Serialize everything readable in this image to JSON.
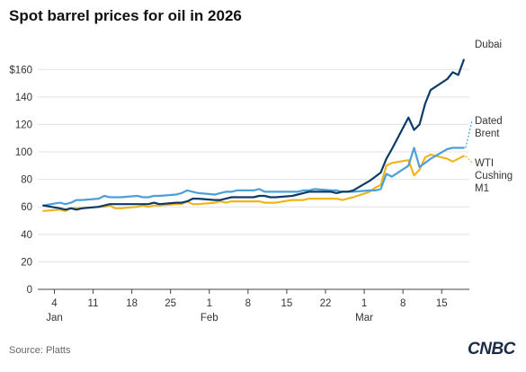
{
  "header": {
    "title": "Spot barrel prices for oil in 2026"
  },
  "footer": {
    "source": "Source: Platts",
    "logo_text": "CNBC"
  },
  "chart_data": {
    "type": "line",
    "title": "Spot barrel prices for oil in 2026",
    "xlabel": "",
    "ylabel": "",
    "ylim": [
      0,
      170
    ],
    "xlim": [
      "2026-01-01",
      "2026-03-20"
    ],
    "grid": true,
    "legend": "direct-labels-right",
    "y_ticks": [
      {
        "value": 0,
        "label": "0"
      },
      {
        "value": 20,
        "label": "20"
      },
      {
        "value": 40,
        "label": "40"
      },
      {
        "value": 60,
        "label": "60"
      },
      {
        "value": 80,
        "label": "80"
      },
      {
        "value": 100,
        "label": "100"
      },
      {
        "value": 120,
        "label": "120"
      },
      {
        "value": 140,
        "label": "140"
      },
      {
        "value": 160,
        "label": "$160"
      }
    ],
    "x_ticks": [
      {
        "date": "2026-01-04",
        "label": "4",
        "month": "Jan"
      },
      {
        "date": "2026-01-11",
        "label": "11",
        "month": ""
      },
      {
        "date": "2026-01-18",
        "label": "18",
        "month": ""
      },
      {
        "date": "2026-01-25",
        "label": "25",
        "month": ""
      },
      {
        "date": "2026-02-01",
        "label": "1",
        "month": "Feb"
      },
      {
        "date": "2026-02-08",
        "label": "8",
        "month": ""
      },
      {
        "date": "2026-02-15",
        "label": "15",
        "month": ""
      },
      {
        "date": "2026-02-22",
        "label": "22",
        "month": ""
      },
      {
        "date": "2026-03-01",
        "label": "1",
        "month": "Mar"
      },
      {
        "date": "2026-03-08",
        "label": "8",
        "month": ""
      },
      {
        "date": "2026-03-15",
        "label": "15",
        "month": ""
      }
    ],
    "series": [
      {
        "name": "Dubai",
        "color": "#0d3b66",
        "label_lines": [
          "Dubai"
        ],
        "points": [
          [
            "2026-01-02",
            61
          ],
          [
            "2026-01-05",
            59
          ],
          [
            "2026-01-06",
            58
          ],
          [
            "2026-01-07",
            59
          ],
          [
            "2026-01-08",
            58
          ],
          [
            "2026-01-09",
            59
          ],
          [
            "2026-01-12",
            60
          ],
          [
            "2026-01-13",
            61
          ],
          [
            "2026-01-14",
            62
          ],
          [
            "2026-01-15",
            62
          ],
          [
            "2026-01-16",
            62
          ],
          [
            "2026-01-19",
            62
          ],
          [
            "2026-01-20",
            62
          ],
          [
            "2026-01-21",
            62
          ],
          [
            "2026-01-22",
            63
          ],
          [
            "2026-01-23",
            62
          ],
          [
            "2026-01-26",
            63
          ],
          [
            "2026-01-27",
            63
          ],
          [
            "2026-01-28",
            64
          ],
          [
            "2026-01-29",
            66
          ],
          [
            "2026-01-30",
            66
          ],
          [
            "2026-02-02",
            65
          ],
          [
            "2026-02-03",
            65
          ],
          [
            "2026-02-04",
            66
          ],
          [
            "2026-02-05",
            67
          ],
          [
            "2026-02-06",
            67
          ],
          [
            "2026-02-09",
            67
          ],
          [
            "2026-02-10",
            68
          ],
          [
            "2026-02-11",
            68
          ],
          [
            "2026-02-12",
            67
          ],
          [
            "2026-02-13",
            67
          ],
          [
            "2026-02-16",
            68
          ],
          [
            "2026-02-17",
            69
          ],
          [
            "2026-02-18",
            70
          ],
          [
            "2026-02-19",
            71
          ],
          [
            "2026-02-20",
            71
          ],
          [
            "2026-02-23",
            71
          ],
          [
            "2026-02-24",
            70
          ],
          [
            "2026-02-25",
            71
          ],
          [
            "2026-02-26",
            71
          ],
          [
            "2026-02-27",
            72
          ],
          [
            "2026-03-02",
            79
          ],
          [
            "2026-03-03",
            82
          ],
          [
            "2026-03-04",
            85
          ],
          [
            "2026-03-05",
            95
          ],
          [
            "2026-03-06",
            102
          ],
          [
            "2026-03-09",
            125
          ],
          [
            "2026-03-10",
            116
          ],
          [
            "2026-03-11",
            120
          ],
          [
            "2026-03-12",
            135
          ],
          [
            "2026-03-13",
            145
          ],
          [
            "2026-03-16",
            153
          ],
          [
            "2026-03-17",
            158
          ],
          [
            "2026-03-18",
            156
          ],
          [
            "2026-03-19",
            167
          ]
        ]
      },
      {
        "name": "Dated Brent",
        "color": "#4d9fd6",
        "label_lines": [
          "Dated",
          "Brent"
        ],
        "points": [
          [
            "2026-01-02",
            61
          ],
          [
            "2026-01-05",
            63
          ],
          [
            "2026-01-06",
            62
          ],
          [
            "2026-01-07",
            63
          ],
          [
            "2026-01-08",
            65
          ],
          [
            "2026-01-09",
            65
          ],
          [
            "2026-01-12",
            66
          ],
          [
            "2026-01-13",
            68
          ],
          [
            "2026-01-14",
            67
          ],
          [
            "2026-01-15",
            67
          ],
          [
            "2026-01-16",
            67
          ],
          [
            "2026-01-19",
            68
          ],
          [
            "2026-01-20",
            67
          ],
          [
            "2026-01-21",
            67
          ],
          [
            "2026-01-22",
            68
          ],
          [
            "2026-01-23",
            68
          ],
          [
            "2026-01-26",
            69
          ],
          [
            "2026-01-27",
            70
          ],
          [
            "2026-01-28",
            72
          ],
          [
            "2026-01-29",
            71
          ],
          [
            "2026-01-30",
            70
          ],
          [
            "2026-02-02",
            69
          ],
          [
            "2026-02-03",
            70
          ],
          [
            "2026-02-04",
            71
          ],
          [
            "2026-02-05",
            71
          ],
          [
            "2026-02-06",
            72
          ],
          [
            "2026-02-09",
            72
          ],
          [
            "2026-02-10",
            73
          ],
          [
            "2026-02-11",
            71
          ],
          [
            "2026-02-12",
            71
          ],
          [
            "2026-02-13",
            71
          ],
          [
            "2026-02-16",
            71
          ],
          [
            "2026-02-17",
            71
          ],
          [
            "2026-02-18",
            72
          ],
          [
            "2026-02-19",
            72
          ],
          [
            "2026-02-20",
            73
          ],
          [
            "2026-02-23",
            72
          ],
          [
            "2026-02-24",
            72
          ],
          [
            "2026-02-25",
            71
          ],
          [
            "2026-02-26",
            71
          ],
          [
            "2026-02-27",
            71
          ],
          [
            "2026-03-02",
            72
          ],
          [
            "2026-03-03",
            72
          ],
          [
            "2026-03-04",
            73
          ],
          [
            "2026-03-05",
            84
          ],
          [
            "2026-03-06",
            82
          ],
          [
            "2026-03-09",
            90
          ],
          [
            "2026-03-10",
            103
          ],
          [
            "2026-03-11",
            89
          ],
          [
            "2026-03-12",
            92
          ],
          [
            "2026-03-13",
            95
          ],
          [
            "2026-03-16",
            102
          ],
          [
            "2026-03-17",
            103
          ],
          [
            "2026-03-18",
            103
          ],
          [
            "2026-03-19",
            103
          ]
        ]
      },
      {
        "name": "WTI Cushing M1",
        "color": "#f0b41c",
        "label_lines": [
          "WTI",
          "Cushing",
          "M1"
        ],
        "points": [
          [
            "2026-01-02",
            57
          ],
          [
            "2026-01-05",
            58
          ],
          [
            "2026-01-06",
            57
          ],
          [
            "2026-01-07",
            59
          ],
          [
            "2026-01-08",
            59
          ],
          [
            "2026-01-09",
            59
          ],
          [
            "2026-01-12",
            60
          ],
          [
            "2026-01-13",
            60
          ],
          [
            "2026-01-14",
            61
          ],
          [
            "2026-01-15",
            59
          ],
          [
            "2026-01-16",
            59
          ],
          [
            "2026-01-19",
            60
          ],
          [
            "2026-01-20",
            61
          ],
          [
            "2026-01-21",
            60
          ],
          [
            "2026-01-22",
            61
          ],
          [
            "2026-01-23",
            61
          ],
          [
            "2026-01-26",
            62
          ],
          [
            "2026-01-27",
            62
          ],
          [
            "2026-01-28",
            64
          ],
          [
            "2026-01-29",
            62
          ],
          [
            "2026-01-30",
            62
          ],
          [
            "2026-02-02",
            63
          ],
          [
            "2026-02-03",
            64
          ],
          [
            "2026-02-04",
            63
          ],
          [
            "2026-02-05",
            64
          ],
          [
            "2026-02-06",
            64
          ],
          [
            "2026-02-09",
            64
          ],
          [
            "2026-02-10",
            64
          ],
          [
            "2026-02-11",
            63
          ],
          [
            "2026-02-12",
            63
          ],
          [
            "2026-02-13",
            63
          ],
          [
            "2026-02-16",
            65
          ],
          [
            "2026-02-17",
            65
          ],
          [
            "2026-02-18",
            65
          ],
          [
            "2026-02-19",
            66
          ],
          [
            "2026-02-20",
            66
          ],
          [
            "2026-02-23",
            66
          ],
          [
            "2026-02-24",
            66
          ],
          [
            "2026-02-25",
            65
          ],
          [
            "2026-02-26",
            66
          ],
          [
            "2026-02-27",
            67
          ],
          [
            "2026-03-02",
            71
          ],
          [
            "2026-03-03",
            74
          ],
          [
            "2026-03-04",
            76
          ],
          [
            "2026-03-05",
            90
          ],
          [
            "2026-03-06",
            92
          ],
          [
            "2026-03-09",
            94
          ],
          [
            "2026-03-10",
            83
          ],
          [
            "2026-03-11",
            87
          ],
          [
            "2026-03-12",
            96
          ],
          [
            "2026-03-13",
            98
          ],
          [
            "2026-03-16",
            95
          ],
          [
            "2026-03-17",
            93
          ],
          [
            "2026-03-18",
            95
          ],
          [
            "2026-03-19",
            97
          ]
        ]
      }
    ]
  }
}
